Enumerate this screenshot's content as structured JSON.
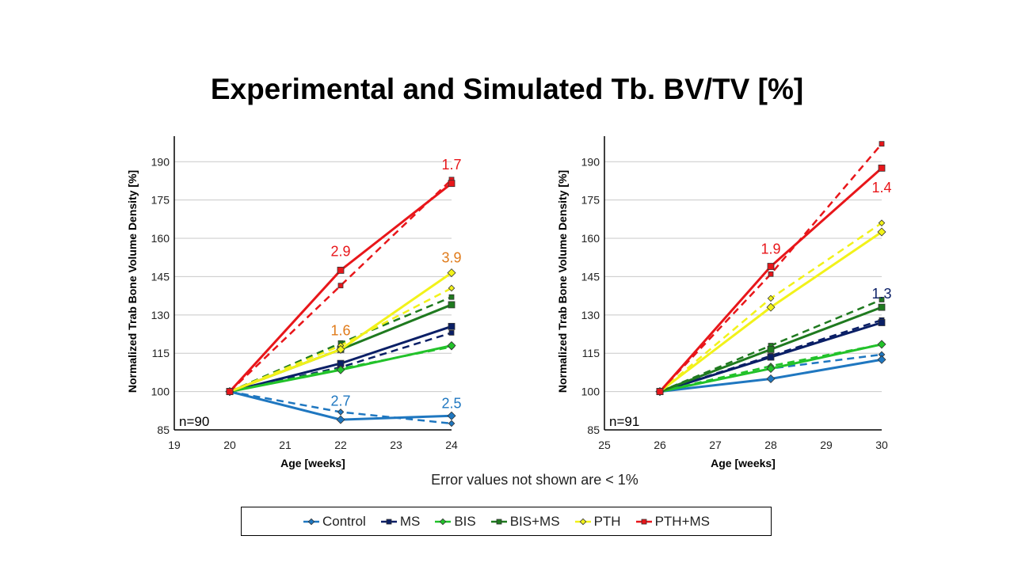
{
  "title": "Experimental and Simulated Tb. BV/TV [%]",
  "note": "Error values not shown are < 1%",
  "legend": [
    {
      "name": "Control",
      "color": "#1f77c0",
      "marker": "diamond"
    },
    {
      "name": "MS",
      "color": "#0a1f66",
      "marker": "square"
    },
    {
      "name": "BIS",
      "color": "#22c22a",
      "marker": "diamond"
    },
    {
      "name": "BIS+MS",
      "color": "#1f7a1f",
      "marker": "square"
    },
    {
      "name": "PTH",
      "color": "#f2f21a",
      "marker": "diamond"
    },
    {
      "name": "PTH+MS",
      "color": "#e8161a",
      "marker": "square"
    }
  ],
  "chart_data": [
    {
      "type": "line",
      "xlabel": "Age [weeks]",
      "ylabel": "Normalized Trab Bone Volume Density [%]",
      "xlim": [
        19,
        24
      ],
      "ylim": [
        85,
        200
      ],
      "xticks": [
        19,
        20,
        21,
        22,
        23,
        24
      ],
      "yticks": [
        85,
        100,
        115,
        130,
        145,
        160,
        175,
        190
      ],
      "grid": "horizontal",
      "n_label": "n=90",
      "series": [
        {
          "name": "Control",
          "color": "#1f77c0",
          "marker": "diamond",
          "experimental": [
            [
              20,
              100
            ],
            [
              22,
              89
            ],
            [
              24,
              90.5
            ]
          ],
          "simulated": [
            [
              20,
              100
            ],
            [
              22,
              92
            ],
            [
              24,
              87.5
            ]
          ]
        },
        {
          "name": "MS",
          "color": "#0a1f66",
          "marker": "square",
          "experimental": [
            [
              20,
              100
            ],
            [
              22,
              111
            ],
            [
              24,
              125.5
            ]
          ],
          "simulated": [
            [
              20,
              100
            ],
            [
              22,
              109.5
            ],
            [
              24,
              123
            ]
          ]
        },
        {
          "name": "BIS",
          "color": "#22c22a",
          "marker": "diamond",
          "experimental": [
            [
              20,
              100
            ],
            [
              22,
              108.5
            ],
            [
              24,
              118
            ]
          ],
          "simulated": [
            [
              20,
              100
            ],
            [
              22,
              109
            ],
            [
              24,
              117.5
            ]
          ]
        },
        {
          "name": "BIS+MS",
          "color": "#1f7a1f",
          "marker": "square",
          "experimental": [
            [
              20,
              100
            ],
            [
              22,
              116.5
            ],
            [
              24,
              134
            ]
          ],
          "simulated": [
            [
              20,
              100
            ],
            [
              22,
              119
            ],
            [
              24,
              137
            ]
          ]
        },
        {
          "name": "PTH",
          "color": "#f2f21a",
          "marker": "diamond",
          "experimental": [
            [
              20,
              100
            ],
            [
              22,
              116.5
            ],
            [
              24,
              146.5
            ]
          ],
          "simulated": [
            [
              20,
              100
            ],
            [
              22,
              118
            ],
            [
              24,
              140.5
            ]
          ]
        },
        {
          "name": "PTH+MS",
          "color": "#e8161a",
          "marker": "square",
          "experimental": [
            [
              20,
              100
            ],
            [
              22,
              147.5
            ],
            [
              24,
              181.5
            ]
          ],
          "simulated": [
            [
              20,
              100
            ],
            [
              22,
              141.5
            ],
            [
              24,
              183
            ]
          ]
        }
      ],
      "annotations": [
        {
          "text": "2.9",
          "x": 22,
          "y": 153,
          "color": "#e8161a"
        },
        {
          "text": "1.7",
          "x": 24,
          "y": 187,
          "color": "#e8161a"
        },
        {
          "text": "3.9",
          "x": 24,
          "y": 150.5,
          "color": "#e07b1a"
        },
        {
          "text": "1.6",
          "x": 22,
          "y": 122,
          "color": "#e07b1a"
        },
        {
          "text": "2.7",
          "x": 22,
          "y": 94.5,
          "color": "#1f77c0"
        },
        {
          "text": "2.5",
          "x": 24,
          "y": 93.5,
          "color": "#1f77c0"
        }
      ]
    },
    {
      "type": "line",
      "xlabel": "Age [weeks]",
      "ylabel": "Normalized Trab Bone Volume Density [%]",
      "xlim": [
        25,
        30
      ],
      "ylim": [
        85,
        200
      ],
      "xticks": [
        25,
        26,
        27,
        28,
        29,
        30
      ],
      "yticks": [
        85,
        100,
        115,
        130,
        145,
        160,
        175,
        190
      ],
      "grid": "horizontal",
      "n_label": "n=91",
      "series": [
        {
          "name": "Control",
          "color": "#1f77c0",
          "marker": "diamond",
          "experimental": [
            [
              26,
              100
            ],
            [
              28,
              105
            ],
            [
              30,
              112.5
            ]
          ],
          "simulated": [
            [
              26,
              100
            ],
            [
              28,
              109
            ],
            [
              30,
              114.5
            ]
          ]
        },
        {
          "name": "MS",
          "color": "#0a1f66",
          "marker": "square",
          "experimental": [
            [
              26,
              100
            ],
            [
              28,
              113.5
            ],
            [
              30,
              127
            ]
          ],
          "simulated": [
            [
              26,
              100
            ],
            [
              28,
              114
            ],
            [
              30,
              128
            ]
          ]
        },
        {
          "name": "BIS",
          "color": "#22c22a",
          "marker": "diamond",
          "experimental": [
            [
              26,
              100
            ],
            [
              28,
              109
            ],
            [
              30,
              118.5
            ]
          ],
          "simulated": [
            [
              26,
              100
            ],
            [
              28,
              110
            ],
            [
              30,
              118.5
            ]
          ]
        },
        {
          "name": "BIS+MS",
          "color": "#1f7a1f",
          "marker": "square",
          "experimental": [
            [
              26,
              100
            ],
            [
              28,
              116.5
            ],
            [
              30,
              133
            ]
          ],
          "simulated": [
            [
              26,
              100
            ],
            [
              28,
              118
            ],
            [
              30,
              136
            ]
          ]
        },
        {
          "name": "PTH",
          "color": "#f2f21a",
          "marker": "diamond",
          "experimental": [
            [
              26,
              100
            ],
            [
              28,
              133
            ],
            [
              30,
              162.5
            ]
          ],
          "simulated": [
            [
              26,
              100
            ],
            [
              28,
              136.5
            ],
            [
              30,
              166
            ]
          ]
        },
        {
          "name": "PTH+MS",
          "color": "#e8161a",
          "marker": "square",
          "experimental": [
            [
              26,
              100
            ],
            [
              28,
              149
            ],
            [
              30,
              187.5
            ]
          ],
          "simulated": [
            [
              26,
              100
            ],
            [
              28,
              146
            ],
            [
              30,
              197
            ]
          ]
        }
      ],
      "annotations": [
        {
          "text": "1.9",
          "x": 28,
          "y": 154,
          "color": "#e8161a"
        },
        {
          "text": "1.4",
          "x": 30,
          "y": 178,
          "color": "#e8161a"
        },
        {
          "text": "1.3",
          "x": 30,
          "y": 136.5,
          "color": "#0a1f66"
        }
      ]
    }
  ]
}
